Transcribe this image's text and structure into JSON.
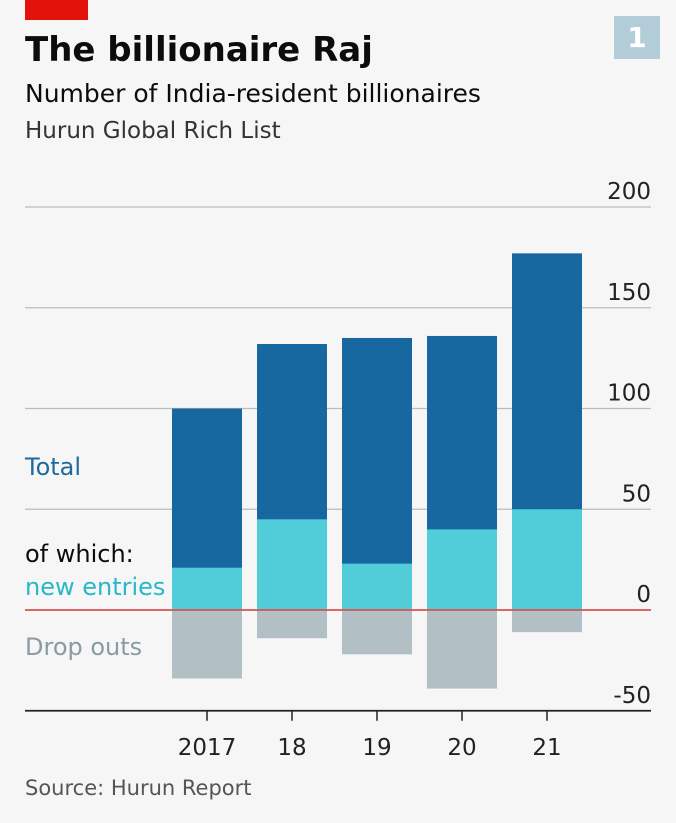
{
  "header": {
    "title": "The billionaire Raj",
    "subtitle": "Number of India-resident billionaires",
    "subtitle2": "Hurun Global Rich List",
    "badge": "1"
  },
  "legend": {
    "total": "Total",
    "of_which": "of which:",
    "new_entries": "new entries",
    "drop_outs": "Drop outs"
  },
  "footer": {
    "source": "Source: Hurun Report"
  },
  "colors": {
    "total": "#1768a0",
    "new_entries": "#51cdd9",
    "drop_outs": "#b2c0c6",
    "zero_line": "#d9534f",
    "grid": "#bcbcbc",
    "axis": "#222222",
    "accent": "#e3120b"
  },
  "chart_data": {
    "type": "bar",
    "categories": [
      "2017",
      "18",
      "19",
      "20",
      "21"
    ],
    "series": [
      {
        "name": "Total",
        "values": [
          100,
          132,
          135,
          136,
          177
        ]
      },
      {
        "name": "new entries",
        "values": [
          21,
          45,
          23,
          40,
          50
        ]
      },
      {
        "name": "Drop outs",
        "values": [
          -34,
          -14,
          -22,
          -39,
          -11
        ]
      }
    ],
    "ylim": [
      -50,
      200
    ],
    "yticks": [
      200,
      150,
      100,
      50,
      0,
      -50
    ],
    "ytick_labels": [
      "200",
      "150",
      "100",
      "50",
      "0",
      "-50"
    ],
    "grid": true,
    "legend_placement": "left"
  }
}
